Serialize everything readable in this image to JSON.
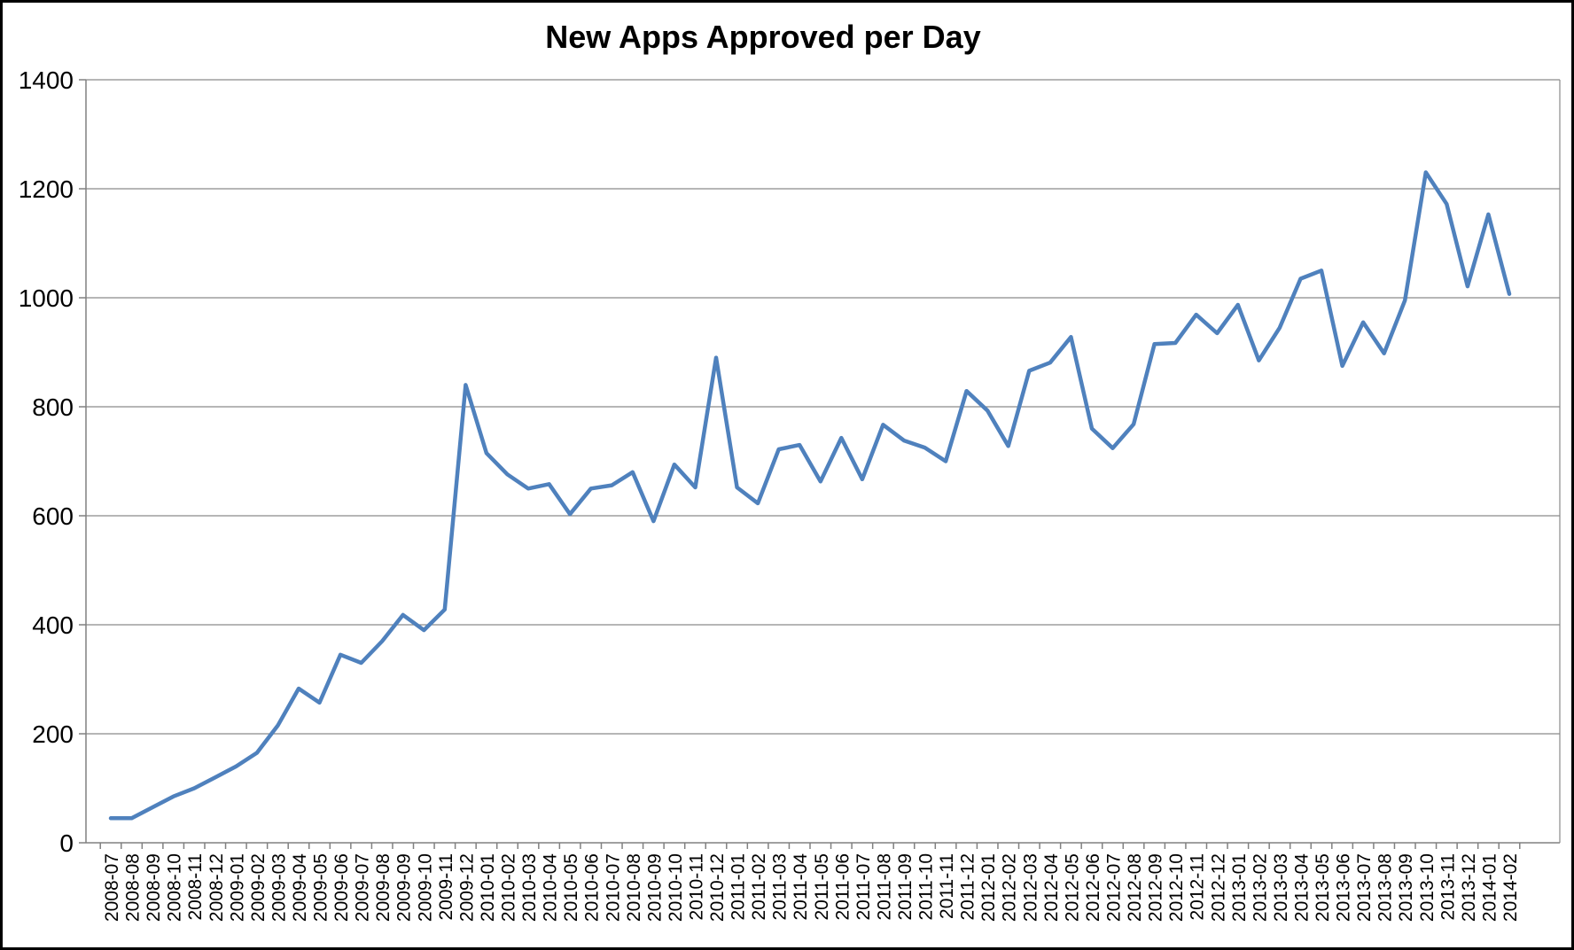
{
  "chart_data": {
    "type": "line",
    "title": "New Apps Approved per Day",
    "xlabel": "",
    "ylabel": "",
    "ylim": [
      0,
      1400
    ],
    "y_ticks": [
      0,
      200,
      400,
      600,
      800,
      1000,
      1200,
      1400
    ],
    "grid": "horizontal",
    "legend": "none",
    "line_color": "#4F81BD",
    "gridline_color": "#8a8a8a",
    "axis_color": "#808080",
    "categories": [
      "2008-07",
      "2008-08",
      "2008-09",
      "2008-10",
      "2008-11",
      "2008-12",
      "2009-01",
      "2009-02",
      "2009-03",
      "2009-04",
      "2009-05",
      "2009-06",
      "2009-07",
      "2009-08",
      "2009-09",
      "2009-10",
      "2009-11",
      "2009-12",
      "2010-01",
      "2010-02",
      "2010-03",
      "2010-04",
      "2010-05",
      "2010-06",
      "2010-07",
      "2010-08",
      "2010-09",
      "2010-10",
      "2010-11",
      "2010-12",
      "2011-01",
      "2011-02",
      "2011-03",
      "2011-04",
      "2011-05",
      "2011-06",
      "2011-07",
      "2011-08",
      "2011-09",
      "2011-10",
      "2011-11",
      "2011-12",
      "2012-01",
      "2012-02",
      "2012-03",
      "2012-04",
      "2012-05",
      "2012-06",
      "2012-07",
      "2012-08",
      "2012-09",
      "2012-10",
      "2012-11",
      "2012-12",
      "2013-01",
      "2013-02",
      "2013-03",
      "2013-04",
      "2013-05",
      "2013-06",
      "2013-07",
      "2013-08",
      "2013-09",
      "2013-10",
      "2013-11",
      "2013-12",
      "2014-01",
      "2014-02"
    ],
    "values": [
      45,
      45,
      65,
      85,
      100,
      120,
      140,
      165,
      215,
      283,
      257,
      345,
      330,
      370,
      418,
      390,
      428,
      840,
      715,
      676,
      650,
      658,
      603,
      650,
      656,
      680,
      590,
      694,
      652,
      890,
      652,
      623,
      722,
      730,
      663,
      743,
      667,
      767,
      738,
      725,
      700,
      829,
      793,
      728,
      866,
      881,
      928,
      760,
      724,
      768,
      915,
      917,
      969,
      935,
      987,
      885,
      945,
      1035,
      1050,
      875,
      955,
      898,
      995,
      1230,
      1172,
      1021,
      1153,
      1007
    ]
  }
}
